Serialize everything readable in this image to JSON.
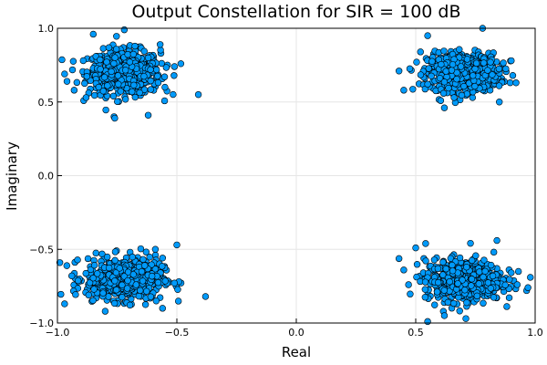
{
  "chart_data": {
    "type": "scatter",
    "title": "Output Constellation for SIR = 100 dB",
    "xlabel": "Real",
    "ylabel": "Imaginary",
    "xlim": [
      -1.0,
      1.0
    ],
    "ylim": [
      -1.0,
      1.0
    ],
    "x_ticks": [
      -1.0,
      -0.5,
      0.0,
      0.5,
      1.0
    ],
    "x_tick_labels": [
      "−1.0",
      "−0.5",
      "0.0",
      "0.5",
      "1.0"
    ],
    "y_ticks": [
      -1.0,
      -0.5,
      0.0,
      0.5,
      1.0
    ],
    "y_tick_labels": [
      "−1.0",
      "−0.5",
      "0.0",
      "0.5",
      "1.0"
    ],
    "grid": true,
    "legend": "none",
    "marker_color": "#009AFA",
    "clusters": [
      {
        "center": [
          -0.72,
          0.7
        ],
        "spread": [
          0.075,
          0.075
        ],
        "count": 600
      },
      {
        "center": [
          0.7,
          0.7
        ],
        "spread": [
          0.075,
          0.065
        ],
        "count": 600
      },
      {
        "center": [
          -0.72,
          -0.7
        ],
        "spread": [
          0.08,
          0.07
        ],
        "count": 600
      },
      {
        "center": [
          0.7,
          -0.71
        ],
        "spread": [
          0.08,
          0.07
        ],
        "count": 600
      }
    ],
    "points": [
      [
        -0.72,
        0.99
      ],
      [
        -0.85,
        0.96
      ],
      [
        -0.97,
        0.69
      ],
      [
        -0.96,
        0.64
      ],
      [
        -0.93,
        0.58
      ],
      [
        -0.41,
        0.55
      ],
      [
        -0.62,
        0.41
      ],
      [
        -0.76,
        0.39
      ],
      [
        -0.88,
        0.53
      ],
      [
        -0.55,
        0.6
      ],
      [
        -0.51,
        0.74
      ],
      [
        -0.57,
        0.89
      ],
      [
        0.78,
        1.0
      ],
      [
        0.45,
        0.58
      ],
      [
        0.52,
        0.84
      ],
      [
        0.9,
        0.78
      ],
      [
        0.85,
        0.5
      ],
      [
        0.62,
        0.46
      ],
      [
        0.92,
        0.63
      ],
      [
        0.55,
        0.95
      ],
      [
        -0.99,
        -0.59
      ],
      [
        -0.94,
        -0.68
      ],
      [
        -0.38,
        -0.82
      ],
      [
        -0.5,
        -0.47
      ],
      [
        -0.56,
        -0.9
      ],
      [
        -0.8,
        -0.92
      ],
      [
        -0.97,
        -0.87
      ],
      [
        -0.59,
        -0.5
      ],
      [
        0.45,
        -0.64
      ],
      [
        0.5,
        -0.49
      ],
      [
        0.55,
        -0.99
      ],
      [
        0.71,
        -0.97
      ],
      [
        0.97,
        -0.76
      ],
      [
        0.93,
        -0.65
      ],
      [
        0.84,
        -0.44
      ],
      [
        0.98,
        -0.69
      ],
      [
        0.62,
        -0.95
      ],
      [
        0.47,
        -0.74
      ]
    ]
  }
}
